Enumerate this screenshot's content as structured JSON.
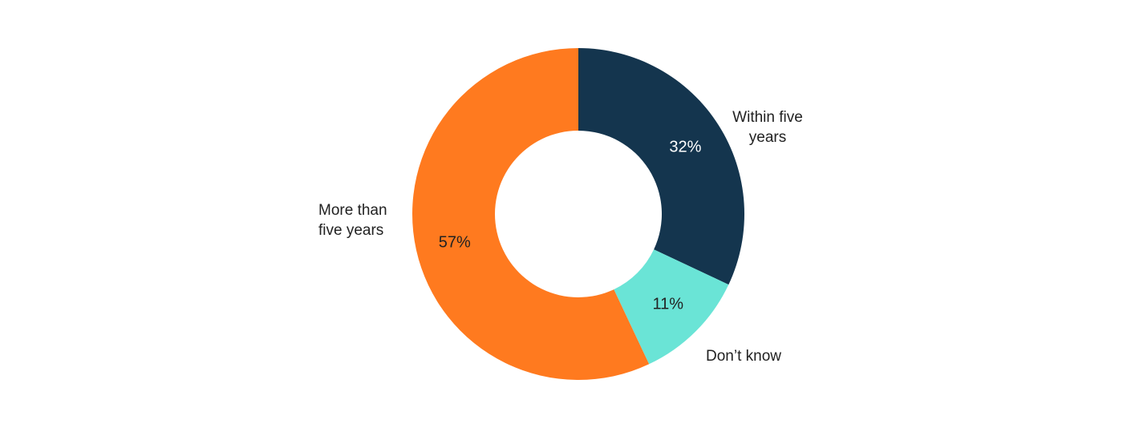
{
  "chart_data": {
    "type": "pie",
    "variant": "donut",
    "title": "",
    "slices": [
      {
        "label_lines": [
          "Within five",
          "years"
        ],
        "value": 32,
        "value_label": "32%",
        "color": "#14354e",
        "value_text_color": "#ffffff"
      },
      {
        "label_lines": [
          "Don’t know"
        ],
        "value": 11,
        "value_label": "11%",
        "color": "#6ae4d6",
        "value_text_color": "#222222"
      },
      {
        "label_lines": [
          "More than",
          "five years"
        ],
        "value": 57,
        "value_label": "57%",
        "color": "#ff7a1f",
        "value_text_color": "#222222"
      }
    ],
    "legend": "none",
    "start_angle": "12 o'clock",
    "direction": "clockwise"
  }
}
